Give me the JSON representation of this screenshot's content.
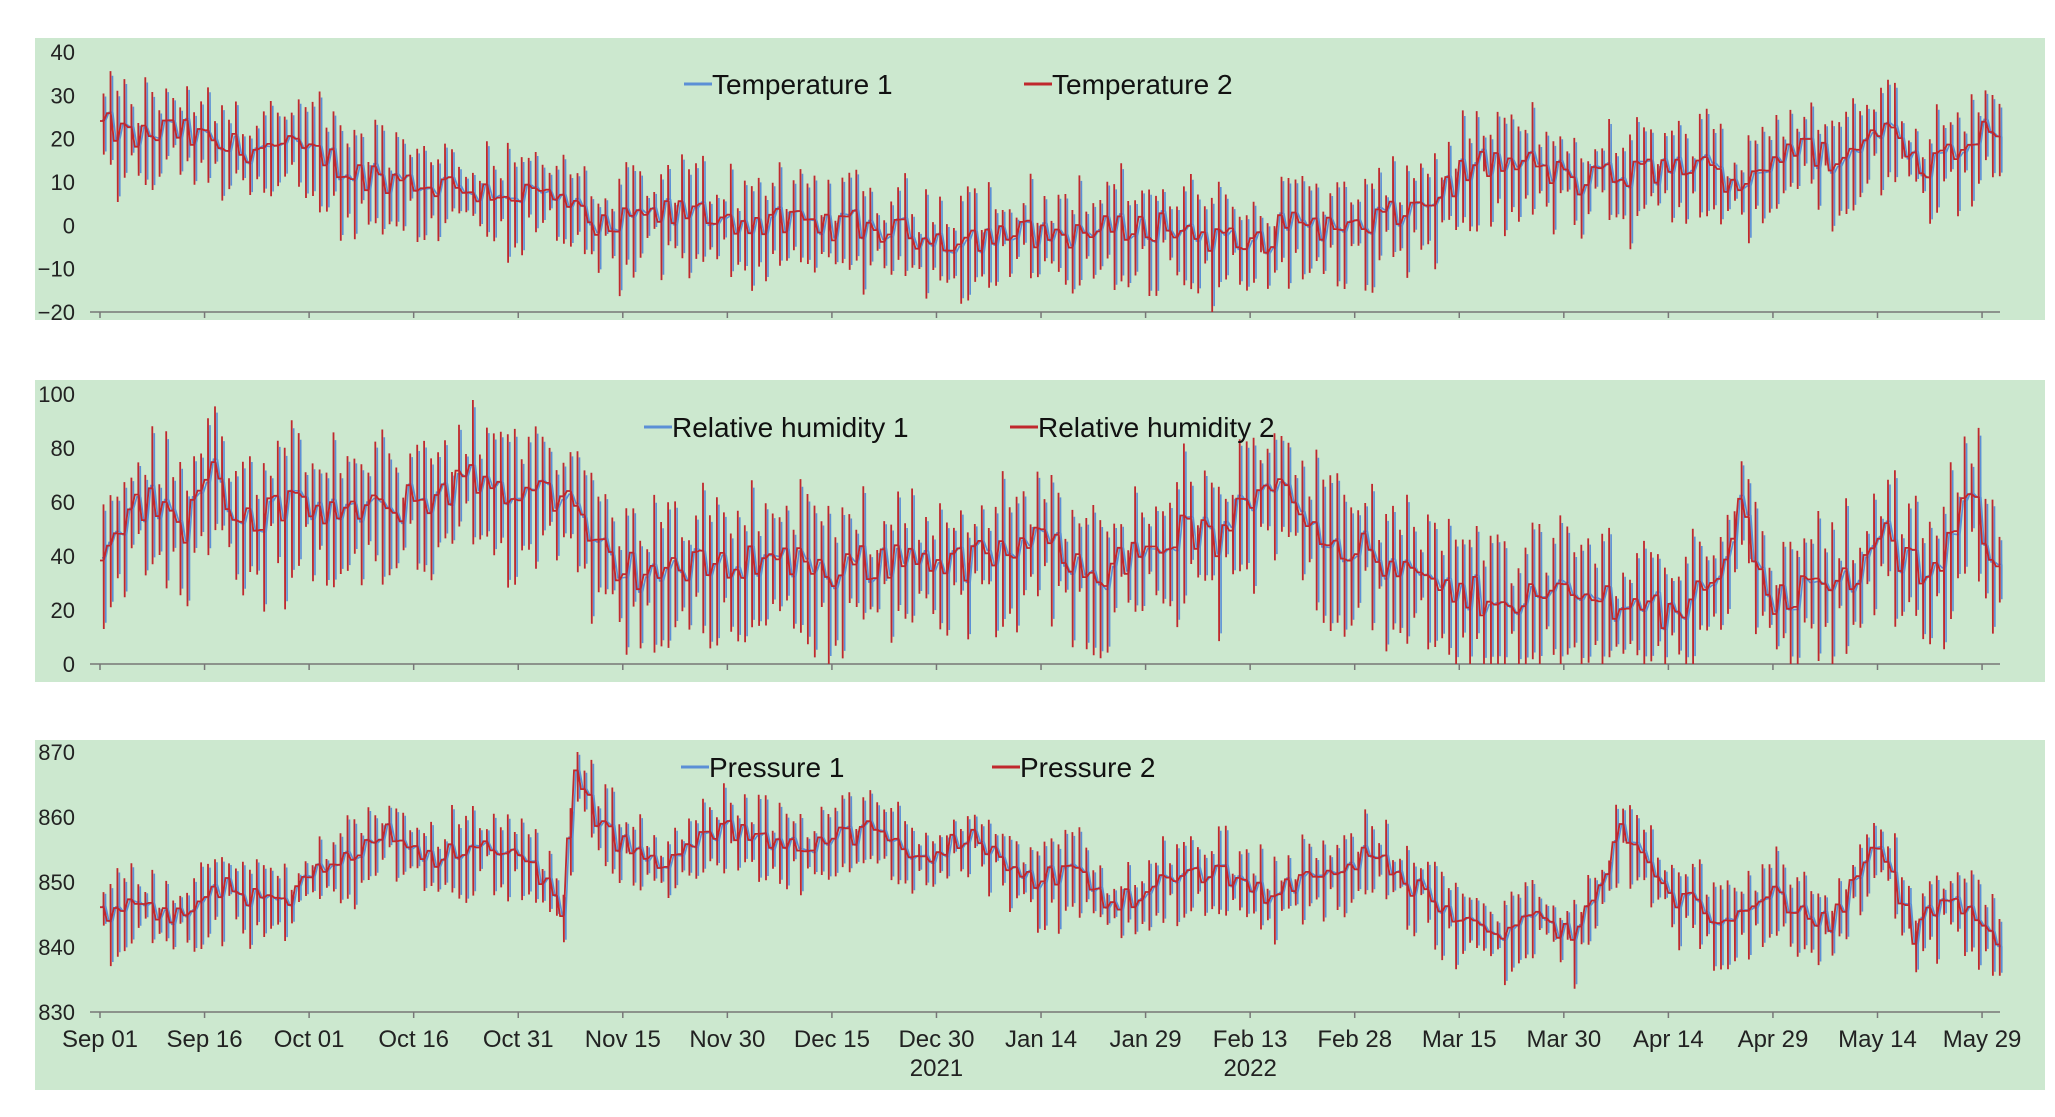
{
  "colors": {
    "panel_background": "#cce8cf",
    "series_1": "#5b8fd6",
    "series_2": "#c0282d",
    "axis": "#777777"
  },
  "x_axis": {
    "tick_labels": [
      "Sep 01",
      "Sep 16",
      "Oct 01",
      "Oct 16",
      "Oct 31",
      "Nov 15",
      "Nov 30",
      "Dec 15",
      "Dec 30",
      "Jan 14",
      "Jan 29",
      "Feb 13",
      "Feb 28",
      "Mar 15",
      "Mar 30",
      "Apr 14",
      "Apr 29",
      "May 14",
      "May 29"
    ],
    "year_labels": [
      {
        "text": "2021",
        "under": "Dec 30"
      },
      {
        "text": "2022",
        "under": "Feb 13"
      }
    ],
    "day_range": [
      0,
      272
    ]
  },
  "chart_data": [
    {
      "type": "line",
      "title": "",
      "xlabel": "",
      "ylabel": "",
      "ylim": [
        -20,
        40
      ],
      "yticks": [
        40,
        30,
        20,
        10,
        0,
        -10,
        -20
      ],
      "ytick_labels": [
        "40",
        "30",
        "20",
        "10",
        "0",
        "−10",
        "−20"
      ],
      "legend": [
        "Temperature 1",
        "Temperature 2"
      ],
      "legend_position": "top-center",
      "daily_mean_anchors": [
        [
          0,
          23
        ],
        [
          5,
          20
        ],
        [
          10,
          22
        ],
        [
          18,
          18
        ],
        [
          25,
          18
        ],
        [
          32,
          16
        ],
        [
          36,
          12
        ],
        [
          45,
          10
        ],
        [
          55,
          8
        ],
        [
          62,
          7
        ],
        [
          68,
          5
        ],
        [
          70,
          -2
        ],
        [
          78,
          2
        ],
        [
          85,
          3
        ],
        [
          92,
          1
        ],
        [
          100,
          0
        ],
        [
          108,
          0
        ],
        [
          115,
          -2
        ],
        [
          122,
          -3
        ],
        [
          130,
          -2
        ],
        [
          138,
          -2
        ],
        [
          145,
          -1
        ],
        [
          152,
          0
        ],
        [
          160,
          -3
        ],
        [
          165,
          -5
        ],
        [
          172,
          2
        ],
        [
          178,
          -2
        ],
        [
          185,
          2
        ],
        [
          190,
          5
        ],
        [
          197,
          14
        ],
        [
          205,
          14
        ],
        [
          212,
          10
        ],
        [
          220,
          12
        ],
        [
          228,
          14
        ],
        [
          235,
          10
        ],
        [
          242,
          18
        ],
        [
          250,
          15
        ],
        [
          256,
          23
        ],
        [
          262,
          14
        ],
        [
          268,
          20
        ],
        [
          272,
          23
        ]
      ],
      "daily_range": [
        8,
        28
      ],
      "series": [
        {
          "name": "Temperature 1"
        },
        {
          "name": "Temperature 2"
        }
      ]
    },
    {
      "type": "line",
      "title": "",
      "xlabel": "",
      "ylabel": "",
      "ylim": [
        0,
        100
      ],
      "yticks": [
        100,
        80,
        60,
        40,
        20,
        0
      ],
      "ytick_labels": [
        "100",
        "80",
        "60",
        "40",
        "20",
        "0"
      ],
      "legend": [
        "Relative humidity 1",
        "Relative humidity 2"
      ],
      "legend_position": "top-center",
      "daily_mean_anchors": [
        [
          0,
          45
        ],
        [
          6,
          60
        ],
        [
          12,
          52
        ],
        [
          15,
          75
        ],
        [
          20,
          55
        ],
        [
          30,
          58
        ],
        [
          38,
          55
        ],
        [
          45,
          60
        ],
        [
          52,
          68
        ],
        [
          60,
          65
        ],
        [
          66,
          62
        ],
        [
          70,
          45
        ],
        [
          75,
          35
        ],
        [
          85,
          35
        ],
        [
          95,
          40
        ],
        [
          105,
          35
        ],
        [
          115,
          40
        ],
        [
          125,
          38
        ],
        [
          135,
          45
        ],
        [
          145,
          35
        ],
        [
          155,
          50
        ],
        [
          160,
          45
        ],
        [
          168,
          70
        ],
        [
          175,
          50
        ],
        [
          185,
          35
        ],
        [
          195,
          25
        ],
        [
          205,
          25
        ],
        [
          215,
          25
        ],
        [
          225,
          20
        ],
        [
          230,
          25
        ],
        [
          235,
          55
        ],
        [
          240,
          25
        ],
        [
          250,
          30
        ],
        [
          256,
          45
        ],
        [
          262,
          30
        ],
        [
          268,
          60
        ],
        [
          272,
          40
        ]
      ],
      "daily_range": [
        18,
        60
      ],
      "series": [
        {
          "name": "Relative humidity 1"
        },
        {
          "name": "Relative humidity 2"
        }
      ]
    },
    {
      "type": "line",
      "title": "",
      "xlabel": "",
      "ylabel": "",
      "ylim": [
        830,
        870
      ],
      "yticks": [
        870,
        860,
        850,
        840,
        830
      ],
      "ytick_labels": [
        "870",
        "860",
        "850",
        "840",
        "830"
      ],
      "legend": [
        "Pressure 1",
        "Pressure 2"
      ],
      "legend_position": "top-center",
      "daily_mean_anchors": [
        [
          0,
          845
        ],
        [
          5,
          848
        ],
        [
          10,
          844
        ],
        [
          18,
          849
        ],
        [
          25,
          846
        ],
        [
          32,
          852
        ],
        [
          40,
          858
        ],
        [
          48,
          854
        ],
        [
          55,
          855
        ],
        [
          62,
          853
        ],
        [
          66,
          846
        ],
        [
          68,
          866
        ],
        [
          72,
          858
        ],
        [
          80,
          852
        ],
        [
          88,
          858
        ],
        [
          95,
          857
        ],
        [
          102,
          856
        ],
        [
          110,
          858
        ],
        [
          118,
          853
        ],
        [
          125,
          858
        ],
        [
          132,
          850
        ],
        [
          140,
          852
        ],
        [
          145,
          846
        ],
        [
          152,
          850
        ],
        [
          160,
          852
        ],
        [
          168,
          848
        ],
        [
          175,
          852
        ],
        [
          182,
          854
        ],
        [
          190,
          848
        ],
        [
          198,
          842
        ],
        [
          205,
          844
        ],
        [
          212,
          842
        ],
        [
          218,
          858
        ],
        [
          225,
          848
        ],
        [
          232,
          845
        ],
        [
          240,
          848
        ],
        [
          248,
          843
        ],
        [
          255,
          856
        ],
        [
          260,
          842
        ],
        [
          265,
          848
        ],
        [
          272,
          840
        ]
      ],
      "daily_range": [
        4,
        14
      ],
      "series": [
        {
          "name": "Pressure 1"
        },
        {
          "name": "Pressure 2"
        }
      ]
    }
  ]
}
